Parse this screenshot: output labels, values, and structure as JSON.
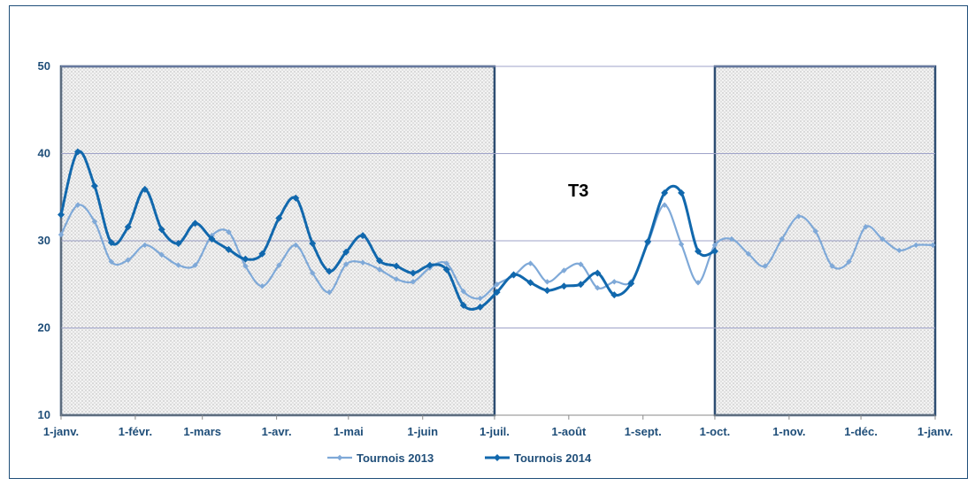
{
  "chart_data": {
    "type": "line",
    "annotation": "T3",
    "ylim": [
      10,
      50
    ],
    "yticks": [
      10,
      20,
      30,
      40,
      50
    ],
    "grid": "horizontal",
    "legend_position": "bottom",
    "xticks": [
      {
        "label": "1-janv.",
        "x": 0
      },
      {
        "label": "1-févr.",
        "x": 31
      },
      {
        "label": "1-mars",
        "x": 59
      },
      {
        "label": "1-avr.",
        "x": 90
      },
      {
        "label": "1-mai",
        "x": 120
      },
      {
        "label": "1-juin",
        "x": 151
      },
      {
        "label": "1-juil.",
        "x": 181
      },
      {
        "label": "1-août",
        "x": 212
      },
      {
        "label": "1-sept.",
        "x": 243
      },
      {
        "label": "1-oct.",
        "x": 273
      },
      {
        "label": "1-nov.",
        "x": 304
      },
      {
        "label": "1-déc.",
        "x": 334
      },
      {
        "label": "1-janv.",
        "x": 365
      }
    ],
    "shaded_periods": [
      [
        0,
        181
      ],
      [
        273,
        365
      ]
    ],
    "series": [
      {
        "name": "Tournois 2013",
        "color": "#7fa9d8",
        "x": [
          0,
          7,
          14,
          21,
          28,
          35,
          42,
          49,
          56,
          63,
          70,
          77,
          84,
          91,
          98,
          105,
          112,
          119,
          126,
          133,
          140,
          147,
          154,
          161,
          168,
          175,
          182,
          189,
          196,
          203,
          210,
          217,
          224,
          231,
          238,
          245,
          252,
          259,
          266,
          273,
          280,
          287,
          294,
          301,
          308,
          315,
          322,
          329,
          336,
          343,
          350,
          357,
          364
        ],
        "values": [
          30.7,
          34.1,
          32.2,
          27.6,
          27.8,
          29.5,
          28.4,
          27.2,
          27.2,
          30.6,
          31.0,
          27.1,
          24.8,
          27.2,
          29.5,
          26.3,
          24.1,
          27.3,
          27.5,
          26.7,
          25.6,
          25.3,
          26.9,
          27.4,
          24.2,
          23.4,
          25.0,
          26.0,
          27.4,
          25.3,
          26.6,
          27.3,
          24.6,
          25.3,
          25.3,
          29.7,
          34.1,
          29.6,
          25.2,
          29.5,
          30.2,
          28.5,
          27.1,
          30.2,
          32.8,
          31.1,
          27.1,
          27.6,
          31.6,
          30.2,
          28.9,
          29.5,
          29.5
        ]
      },
      {
        "name": "Tournois 2014",
        "color": "#1168ad",
        "x": [
          0,
          7,
          14,
          21,
          28,
          35,
          42,
          49,
          56,
          63,
          70,
          77,
          84,
          91,
          98,
          105,
          112,
          119,
          126,
          133,
          140,
          147,
          154,
          161,
          168,
          175,
          182,
          189,
          196,
          203,
          210,
          217,
          224,
          231,
          238,
          245,
          252,
          259,
          266,
          273
        ],
        "values": [
          33.0,
          40.2,
          36.3,
          29.8,
          31.6,
          35.9,
          31.3,
          29.7,
          32.0,
          30.2,
          29.0,
          27.9,
          28.5,
          32.6,
          34.9,
          29.7,
          26.5,
          28.7,
          30.6,
          27.7,
          27.1,
          26.3,
          27.2,
          26.7,
          22.6,
          22.4,
          24.1,
          26.1,
          25.2,
          24.3,
          24.8,
          25.0,
          26.3,
          23.8,
          25.1,
          29.9,
          35.5,
          35.5,
          28.8,
          28.8
        ]
      }
    ]
  }
}
